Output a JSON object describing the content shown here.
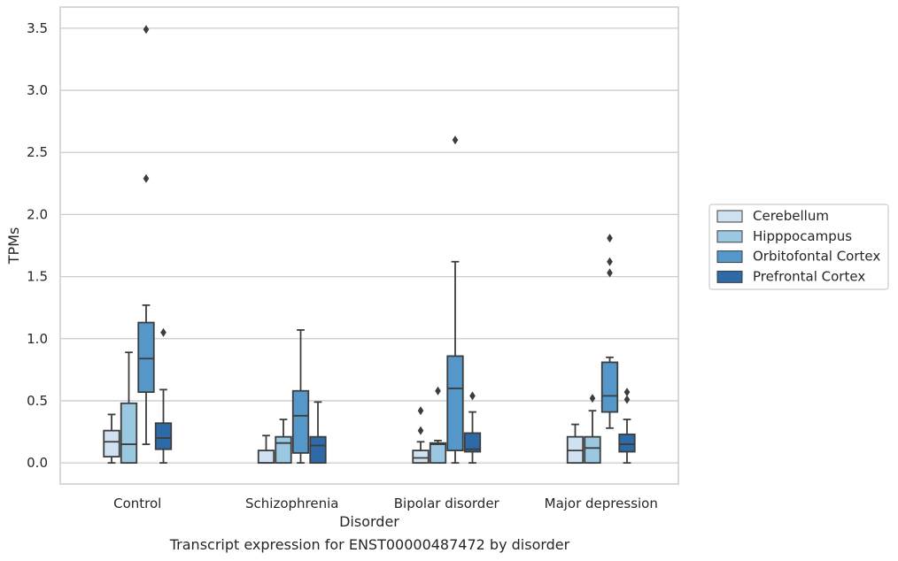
{
  "caption": "Transcript expression for ENST00000487472 by disorder",
  "chart_data": {
    "type": "box",
    "xlabel": "Disorder",
    "ylabel": "TPMs",
    "ylim": [
      -0.17,
      3.67
    ],
    "yticks": [
      0.0,
      0.5,
      1.0,
      1.5,
      2.0,
      2.5,
      3.0,
      3.5
    ],
    "ytick_labels": [
      "0.0",
      "0.5",
      "1.0",
      "1.5",
      "2.0",
      "2.5",
      "3.0",
      "3.5"
    ],
    "grid": "horizontal",
    "legend_position": "right",
    "categories": [
      "Control",
      "Schizophrenia",
      "Bipolar disorder",
      "Major depression"
    ],
    "series": [
      {
        "name": "Cerebellum",
        "color": "#d0e1f2",
        "boxes": [
          {
            "whislo": 0.0,
            "q1": 0.05,
            "med": 0.17,
            "q3": 0.26,
            "whishi": 0.39,
            "fliers": []
          },
          {
            "whislo": 0.0,
            "q1": 0.0,
            "med": 0.0,
            "q3": 0.1,
            "whishi": 0.22,
            "fliers": []
          },
          {
            "whislo": 0.0,
            "q1": 0.0,
            "med": 0.04,
            "q3": 0.1,
            "whishi": 0.17,
            "fliers": [
              0.26,
              0.42
            ]
          },
          {
            "whislo": 0.0,
            "q1": 0.0,
            "med": 0.1,
            "q3": 0.21,
            "whishi": 0.31,
            "fliers": []
          }
        ]
      },
      {
        "name": "Hipppocampus",
        "color": "#9ac8e0",
        "boxes": [
          {
            "whislo": 0.0,
            "q1": 0.0,
            "med": 0.15,
            "q3": 0.48,
            "whishi": 0.89,
            "fliers": []
          },
          {
            "whislo": 0.0,
            "q1": 0.0,
            "med": 0.16,
            "q3": 0.21,
            "whishi": 0.35,
            "fliers": []
          },
          {
            "whislo": 0.0,
            "q1": 0.0,
            "med": 0.15,
            "q3": 0.16,
            "whishi": 0.18,
            "fliers": [
              0.58
            ]
          },
          {
            "whislo": 0.0,
            "q1": 0.0,
            "med": 0.12,
            "q3": 0.21,
            "whishi": 0.42,
            "fliers": [
              0.52
            ]
          }
        ]
      },
      {
        "name": "Orbitofontal Cortex",
        "color": "#5597c9",
        "boxes": [
          {
            "whislo": 0.15,
            "q1": 0.57,
            "med": 0.84,
            "q3": 1.13,
            "whishi": 1.27,
            "fliers": [
              2.29,
              3.49
            ]
          },
          {
            "whislo": 0.0,
            "q1": 0.08,
            "med": 0.38,
            "q3": 0.58,
            "whishi": 1.07,
            "fliers": []
          },
          {
            "whislo": 0.0,
            "q1": 0.1,
            "med": 0.6,
            "q3": 0.86,
            "whishi": 1.62,
            "fliers": [
              2.6
            ]
          },
          {
            "whislo": 0.28,
            "q1": 0.41,
            "med": 0.54,
            "q3": 0.81,
            "whishi": 0.85,
            "fliers": [
              1.53,
              1.62,
              1.81
            ]
          }
        ]
      },
      {
        "name": "Prefrontal Cortex",
        "color": "#2e6aa8",
        "boxes": [
          {
            "whislo": 0.0,
            "q1": 0.11,
            "med": 0.2,
            "q3": 0.32,
            "whishi": 0.59,
            "fliers": [
              1.05
            ]
          },
          {
            "whislo": 0.0,
            "q1": 0.0,
            "med": 0.14,
            "q3": 0.21,
            "whishi": 0.49,
            "fliers": []
          },
          {
            "whislo": 0.0,
            "q1": 0.09,
            "med": 0.11,
            "q3": 0.24,
            "whishi": 0.41,
            "fliers": [
              0.54
            ]
          },
          {
            "whislo": 0.0,
            "q1": 0.09,
            "med": 0.15,
            "q3": 0.23,
            "whishi": 0.35,
            "fliers": [
              0.51,
              0.57
            ]
          }
        ]
      }
    ]
  }
}
